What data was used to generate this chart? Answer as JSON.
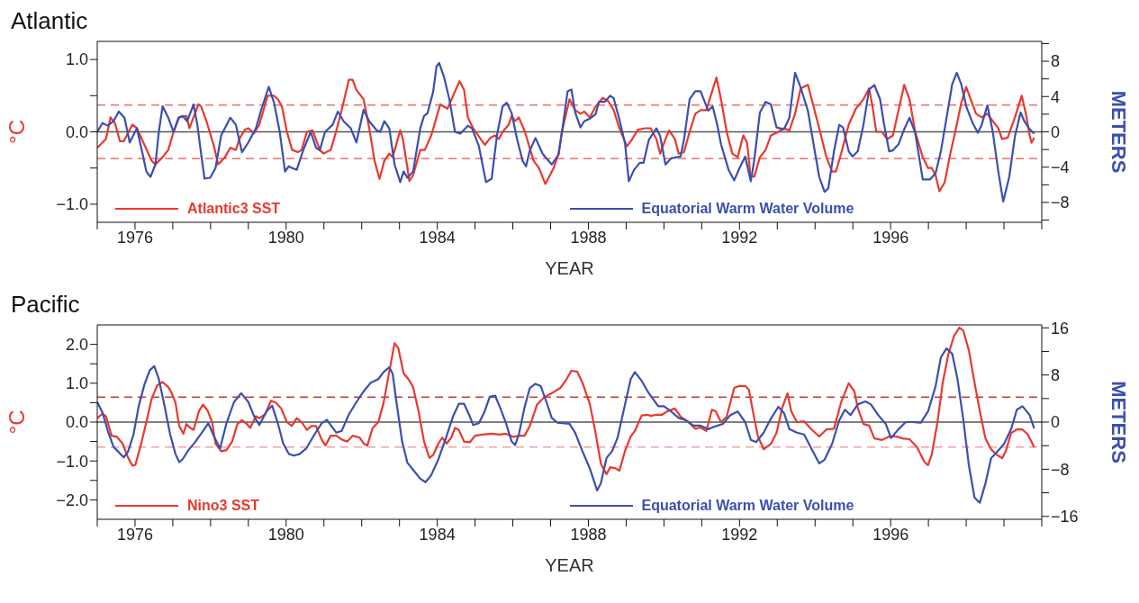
{
  "chart_data": [
    {
      "type": "line",
      "title": "Atlantic",
      "xlabel": "YEAR",
      "ylabel": "°C",
      "y2label": "METERS",
      "legend": "bottom",
      "xlim": [
        1975,
        2000
      ],
      "xticks": [
        {
          "value": 1975,
          "label": null
        },
        1976,
        {
          "value": 1977,
          "label": null
        },
        {
          "value": 1978,
          "label": null
        },
        {
          "value": 1979,
          "label": null
        },
        1980,
        {
          "value": 1981,
          "label": null
        },
        {
          "value": 1982,
          "label": null
        },
        {
          "value": 1983,
          "label": null
        },
        1984,
        {
          "value": 1985,
          "label": null
        },
        {
          "value": 1986,
          "label": null
        },
        {
          "value": 1987,
          "label": null
        },
        1988,
        {
          "value": 1989,
          "label": null
        },
        {
          "value": 1990,
          "label": null
        },
        {
          "value": 1991,
          "label": null
        },
        1992,
        {
          "value": 1993,
          "label": null
        },
        {
          "value": 1994,
          "label": null
        },
        {
          "value": 1995,
          "label": null
        },
        1996,
        {
          "value": 1997,
          "label": null
        },
        {
          "value": 1998,
          "label": null
        },
        {
          "value": 1999,
          "label": null
        },
        {
          "value": 2000,
          "label": null
        }
      ],
      "ylim": [
        -1.25,
        1.25
      ],
      "yticks": [
        {
          "value": -1,
          "label": "−1.0"
        },
        {
          "value": -0.5,
          "label": null
        },
        {
          "value": 0,
          "label": "0.0"
        },
        {
          "value": 0.5,
          "label": null
        },
        {
          "value": 1,
          "label": "1.0"
        }
      ],
      "y2lim": [
        -10.25,
        10.25
      ],
      "y2ticks": [
        {
          "value": -10,
          "label": null
        },
        {
          "value": -8,
          "label": "−8"
        },
        {
          "value": -6,
          "label": null
        },
        {
          "value": -4,
          "label": "−4"
        },
        {
          "value": -2,
          "label": null
        },
        0,
        {
          "value": 2,
          "label": null
        },
        4,
        {
          "value": 6,
          "label": null
        },
        8,
        {
          "value": 10,
          "label": null
        }
      ],
      "ref_lines": [
        {
          "axis": "y",
          "value": 0,
          "color": "#555555",
          "line_style": "solid"
        },
        {
          "axis": "y",
          "value": 0.37,
          "color": "#f07070",
          "line_style": "dashed"
        },
        {
          "axis": "y",
          "value": -0.37,
          "color": "#f07070",
          "line_style": "dashed"
        }
      ],
      "series": [
        {
          "name": "Atlantic3 SST",
          "color": "#e8382f",
          "x": [
            1975.0,
            1975.23,
            1975.35,
            1975.47,
            1975.6,
            1975.7,
            1975.93,
            1976.05,
            1976.44,
            1976.54,
            1976.73,
            1976.88,
            1977.02,
            1977.17,
            1977.36,
            1977.44,
            1977.68,
            1977.75,
            1977.89,
            1978.09,
            1978.2,
            1978.38,
            1978.52,
            1978.67,
            1978.76,
            1978.91,
            1979.0,
            1979.15,
            1979.29,
            1979.51,
            1979.68,
            1979.78,
            1979.89,
            1980.02,
            1980.16,
            1980.31,
            1980.41,
            1980.55,
            1980.7,
            1980.89,
            1980.99,
            1981.18,
            1981.32,
            1981.47,
            1981.66,
            1981.76,
            1981.86,
            1982.05,
            1982.2,
            1982.34,
            1982.47,
            1982.6,
            1982.73,
            1982.82,
            1983.02,
            1983.09,
            1983.21,
            1983.26,
            1983.36,
            1983.55,
            1983.67,
            1983.84,
            1983.98,
            1984.08,
            1984.27,
            1984.42,
            1984.59,
            1984.71,
            1984.81,
            1984.95,
            1985.15,
            1985.26,
            1985.41,
            1985.53,
            1985.63,
            1985.73,
            1985.89,
            1985.97,
            1986.06,
            1986.16,
            1986.32,
            1986.55,
            1986.69,
            1986.86,
            1987.08,
            1987.21,
            1987.3,
            1987.5,
            1987.65,
            1987.79,
            1987.89,
            1988.04,
            1988.19,
            1988.38,
            1988.53,
            1988.67,
            1988.82,
            1989.02,
            1989.16,
            1989.31,
            1989.51,
            1989.65,
            1989.8,
            1989.9,
            1990.04,
            1990.14,
            1990.29,
            1990.39,
            1990.53,
            1990.68,
            1990.83,
            1990.97,
            1991.12,
            1991.27,
            1991.39,
            1991.51,
            1991.66,
            1991.81,
            1991.95,
            1992.1,
            1992.2,
            1992.29,
            1992.39,
            1992.54,
            1992.69,
            1992.83,
            1993.03,
            1993.18,
            1993.32,
            1993.47,
            1993.62,
            1993.81,
            1993.96,
            1994.11,
            1994.3,
            1994.45,
            1994.55,
            1994.69,
            1994.89,
            1995.08,
            1995.28,
            1995.43,
            1995.52,
            1995.62,
            1995.77,
            1995.91,
            1996.06,
            1996.21,
            1996.36,
            1996.5,
            1996.65,
            1996.85,
            1996.99,
            1997.09,
            1997.19,
            1997.29,
            1997.43,
            1997.58,
            1997.73,
            1997.87,
            1998.0,
            1998.12,
            1998.26,
            1998.41,
            1998.56,
            1998.7,
            1998.85,
            1998.95,
            1999.1,
            1999.29,
            1999.47,
            1999.58,
            1999.68,
            1999.73,
            1999.8
          ],
          "values": [
            -0.22,
            -0.1,
            0.2,
            0.12,
            -0.13,
            -0.13,
            0.1,
            0.05,
            -0.4,
            -0.45,
            -0.35,
            -0.25,
            0.0,
            0.2,
            0.22,
            0.05,
            0.38,
            0.35,
            0.15,
            -0.2,
            -0.45,
            -0.35,
            -0.22,
            -0.25,
            -0.1,
            0.03,
            0.05,
            -0.02,
            0.1,
            0.5,
            0.5,
            0.45,
            0.35,
            0.0,
            -0.25,
            -0.28,
            -0.25,
            0.0,
            0.02,
            -0.25,
            -0.3,
            -0.25,
            0.0,
            0.3,
            0.72,
            0.72,
            0.58,
            0.45,
            0.05,
            -0.4,
            -0.65,
            -0.4,
            -0.3,
            -0.35,
            0.02,
            -0.1,
            -0.5,
            -0.68,
            -0.6,
            -0.25,
            -0.25,
            -0.05,
            0.2,
            0.38,
            0.32,
            0.5,
            0.7,
            0.58,
            0.2,
            0.05,
            -0.1,
            -0.18,
            -0.08,
            -0.05,
            -0.1,
            0.0,
            0.1,
            0.22,
            0.15,
            0.2,
            0.0,
            -0.4,
            -0.5,
            -0.72,
            -0.5,
            -0.3,
            0.0,
            0.45,
            0.3,
            0.25,
            0.28,
            0.2,
            0.35,
            0.47,
            0.42,
            0.3,
            0.05,
            -0.2,
            -0.1,
            0.03,
            0.05,
            0.05,
            -0.1,
            -0.3,
            -0.1,
            0.02,
            -0.1,
            -0.3,
            -0.28,
            0.0,
            0.25,
            0.3,
            0.3,
            0.55,
            0.75,
            0.45,
            0.0,
            -0.3,
            -0.35,
            -0.05,
            -0.15,
            -0.6,
            -0.62,
            -0.35,
            -0.25,
            -0.05,
            0.0,
            0.05,
            0.02,
            0.25,
            0.6,
            0.65,
            0.35,
            0.05,
            -0.35,
            -0.55,
            -0.55,
            -0.3,
            0.1,
            0.32,
            0.45,
            0.6,
            0.35,
            0.0,
            0.0,
            -0.1,
            -0.05,
            0.3,
            0.65,
            0.45,
            0.0,
            -0.35,
            -0.5,
            -0.5,
            -0.6,
            -0.82,
            -0.7,
            -0.3,
            0.05,
            0.4,
            0.62,
            0.45,
            0.25,
            0.2,
            0.25,
            0.15,
            0.05,
            -0.1,
            -0.08,
            0.2,
            0.5,
            0.25,
            -0.05,
            -0.15,
            -0.08
          ]
        },
        {
          "name": "Equatorial Warm Water Volume",
          "color": "#3a4fb0",
          "axis": "y2",
          "x": [
            1975.0,
            1975.14,
            1975.28,
            1975.43,
            1975.57,
            1975.72,
            1975.86,
            1976.05,
            1976.2,
            1976.3,
            1976.41,
            1976.54,
            1976.63,
            1976.73,
            1976.88,
            1977.02,
            1977.15,
            1977.26,
            1977.38,
            1977.55,
            1977.65,
            1977.75,
            1977.84,
            1977.99,
            1978.13,
            1978.28,
            1978.52,
            1978.67,
            1978.83,
            1979.0,
            1979.2,
            1979.34,
            1979.54,
            1979.68,
            1979.83,
            1979.97,
            1980.07,
            1980.16,
            1980.28,
            1980.45,
            1980.65,
            1980.79,
            1980.89,
            1981.03,
            1981.23,
            1981.37,
            1981.52,
            1981.71,
            1981.86,
            1982.05,
            1982.2,
            1982.39,
            1982.49,
            1982.6,
            1982.73,
            1982.87,
            1983.02,
            1983.11,
            1983.21,
            1983.36,
            1983.55,
            1983.65,
            1983.74,
            1983.89,
            1983.98,
            1984.05,
            1984.18,
            1984.32,
            1984.47,
            1984.61,
            1984.81,
            1984.92,
            1985.1,
            1985.29,
            1985.44,
            1985.58,
            1985.73,
            1985.84,
            1985.97,
            1986.11,
            1986.26,
            1986.35,
            1986.45,
            1986.6,
            1986.79,
            1987.03,
            1987.21,
            1987.31,
            1987.45,
            1987.55,
            1987.65,
            1987.79,
            1987.89,
            1988.04,
            1988.19,
            1988.28,
            1988.43,
            1988.58,
            1988.67,
            1988.82,
            1988.97,
            1989.07,
            1989.21,
            1989.36,
            1989.46,
            1989.6,
            1989.8,
            1989.9,
            1990.04,
            1990.19,
            1990.44,
            1990.53,
            1990.68,
            1990.83,
            1990.97,
            1991.07,
            1991.17,
            1991.29,
            1991.41,
            1991.51,
            1991.71,
            1991.86,
            1992.0,
            1992.15,
            1992.3,
            1992.39,
            1992.54,
            1992.69,
            1992.83,
            1992.98,
            1993.18,
            1993.32,
            1993.47,
            1993.62,
            1993.81,
            1993.96,
            1994.11,
            1994.25,
            1994.35,
            1994.5,
            1994.64,
            1994.74,
            1994.89,
            1994.99,
            1995.13,
            1995.28,
            1995.43,
            1995.57,
            1995.72,
            1995.82,
            1995.96,
            1996.06,
            1996.21,
            1996.36,
            1996.5,
            1996.65,
            1996.85,
            1997.04,
            1997.19,
            1997.33,
            1997.48,
            1997.63,
            1997.75,
            1997.87,
            1998.0,
            1998.17,
            1998.31,
            1998.41,
            1998.56,
            1998.7,
            1998.85,
            1998.98,
            1999.14,
            1999.29,
            1999.44,
            1999.54,
            1999.68,
            1999.8
          ],
          "values": [
            0,
            1.0,
            0.7,
            1.2,
            2.3,
            1.6,
            -1.2,
            0.4,
            -2.5,
            -4.5,
            -5.1,
            -3.7,
            0,
            2.9,
            1.6,
            0,
            1.6,
            1.8,
            1.2,
            3.1,
            0.8,
            -2.5,
            -5.3,
            -5.2,
            -4.1,
            -0.4,
            1.6,
            0.8,
            -2.3,
            -1.2,
            0.4,
            2.5,
            5.1,
            3.3,
            0,
            -4.5,
            -3.9,
            -4.1,
            -4.3,
            -2.1,
            0,
            -1.8,
            -2.1,
            0,
            0.8,
            2.3,
            1.2,
            0.4,
            -1.2,
            2.5,
            1.2,
            0.2,
            0,
            1.2,
            0.4,
            -3.7,
            -5.7,
            -4.5,
            -5.2,
            -4.5,
            0.4,
            1.8,
            2.1,
            4.5,
            7.4,
            7.8,
            6.2,
            3.7,
            0,
            -0.2,
            0.7,
            0.4,
            -1.6,
            -5.7,
            -5.3,
            -0.4,
            2.9,
            3.3,
            2.1,
            -0.8,
            -3.3,
            -3.9,
            -2.1,
            -0.7,
            -2.5,
            -3.7,
            -2.6,
            0.3,
            4.6,
            4.8,
            2.2,
            0.5,
            1.2,
            1.5,
            2.0,
            3.4,
            3.4,
            4.1,
            3.8,
            1.4,
            -1.3,
            -5.6,
            -4.3,
            -3.5,
            -3.5,
            -0.9,
            0.4,
            -0.5,
            -3.7,
            -3.0,
            -2.8,
            -0.9,
            3.7,
            4.6,
            4.6,
            3.5,
            2.4,
            2.9,
            0.8,
            -1.4,
            -4.3,
            -5.5,
            -4.1,
            -2.8,
            -5.6,
            -3.2,
            2.2,
            3.4,
            3.1,
            0.5,
            0.3,
            1.6,
            6.7,
            5.0,
            2.4,
            -1.4,
            -5.1,
            -6.8,
            -6.4,
            -2.2,
            0.8,
            0.5,
            -2.2,
            -2.8,
            -2.2,
            0.8,
            4.8,
            5.3,
            3.7,
            1.0,
            -2.2,
            -2.1,
            -1.4,
            0.3,
            1.6,
            -0.1,
            -5.4,
            -5.4,
            -4.7,
            -2.2,
            1.6,
            5.4,
            6.7,
            5.4,
            2.9,
            1.0,
            -0.1,
            0.8,
            3.0,
            0.1,
            -4.5,
            -7.9,
            -5.1,
            -0.5,
            2.2,
            1.2,
            0.3,
            -0.2
          ]
        }
      ]
    },
    {
      "type": "line",
      "title": "Pacific",
      "xlabel": "YEAR",
      "ylabel": "°C",
      "y2label": "METERS",
      "legend": "bottom",
      "xlim": [
        1975,
        2000
      ],
      "xticks": [
        {
          "value": 1975,
          "label": null
        },
        1976,
        {
          "value": 1977,
          "label": null
        },
        {
          "value": 1978,
          "label": null
        },
        {
          "value": 1979,
          "label": null
        },
        1980,
        {
          "value": 1981,
          "label": null
        },
        {
          "value": 1982,
          "label": null
        },
        {
          "value": 1983,
          "label": null
        },
        1984,
        {
          "value": 1985,
          "label": null
        },
        {
          "value": 1986,
          "label": null
        },
        {
          "value": 1987,
          "label": null
        },
        1988,
        {
          "value": 1989,
          "label": null
        },
        {
          "value": 1990,
          "label": null
        },
        {
          "value": 1991,
          "label": null
        },
        1992,
        {
          "value": 1993,
          "label": null
        },
        {
          "value": 1994,
          "label": null
        },
        {
          "value": 1995,
          "label": null
        },
        1996,
        {
          "value": 1997,
          "label": null
        },
        {
          "value": 1998,
          "label": null
        },
        {
          "value": 1999,
          "label": null
        },
        {
          "value": 2000,
          "label": null
        }
      ],
      "ylim": [
        -2.5,
        2.5
      ],
      "yticks": [
        {
          "value": -2,
          "label": "−2.0"
        },
        {
          "value": -1.5,
          "label": null
        },
        {
          "value": -1,
          "label": "−1.0"
        },
        {
          "value": -0.5,
          "label": null
        },
        {
          "value": 0,
          "label": "0.0"
        },
        {
          "value": 0.5,
          "label": null
        },
        {
          "value": 1,
          "label": "1.0"
        },
        {
          "value": 1.5,
          "label": null
        },
        {
          "value": 2,
          "label": "2.0"
        }
      ],
      "y2lim": [
        -16.5,
        16.5
      ],
      "y2ticks": [
        {
          "value": -16,
          "label": "−16"
        },
        {
          "value": -12,
          "label": null
        },
        {
          "value": -8,
          "label": "−8"
        },
        {
          "value": -4,
          "label": null
        },
        0,
        {
          "value": 4,
          "label": null
        },
        8,
        {
          "value": 12,
          "label": null
        },
        16
      ],
      "ref_lines": [
        {
          "axis": "y",
          "value": 0,
          "color": "#555555",
          "line_style": "solid"
        },
        {
          "axis": "y",
          "value": 0.64,
          "color": "#c83a3a",
          "line_style": "dashed"
        },
        {
          "axis": "y",
          "value": -0.64,
          "color": "#f5a0a0",
          "line_style": "dashed"
        }
      ],
      "series": [
        {
          "name": "Nino3 SST",
          "color": "#e8382f",
          "x": [
            1975.0,
            1975.14,
            1975.23,
            1975.38,
            1975.52,
            1975.67,
            1975.81,
            1975.93,
            1976.01,
            1976.15,
            1976.3,
            1976.44,
            1976.59,
            1976.73,
            1976.88,
            1976.97,
            1977.07,
            1977.17,
            1977.28,
            1977.36,
            1977.46,
            1977.55,
            1977.7,
            1977.8,
            1977.92,
            1978.04,
            1978.13,
            1978.28,
            1978.42,
            1978.57,
            1978.71,
            1978.83,
            1978.96,
            1979.05,
            1979.2,
            1979.29,
            1979.44,
            1979.6,
            1979.73,
            1979.87,
            1980.02,
            1980.15,
            1980.28,
            1980.41,
            1980.55,
            1980.67,
            1980.79,
            1980.94,
            1981.04,
            1981.18,
            1981.33,
            1981.47,
            1981.62,
            1981.76,
            1981.95,
            1982.05,
            1982.15,
            1982.29,
            1982.44,
            1982.58,
            1982.73,
            1982.87,
            1982.97,
            1983.11,
            1983.24,
            1983.36,
            1983.5,
            1983.65,
            1983.79,
            1983.89,
            1984.03,
            1984.13,
            1984.25,
            1984.37,
            1984.47,
            1984.57,
            1984.71,
            1984.86,
            1985.0,
            1985.19,
            1985.44,
            1985.63,
            1985.82,
            1986.02,
            1986.16,
            1986.31,
            1986.45,
            1986.64,
            1986.84,
            1987.06,
            1987.26,
            1987.4,
            1987.55,
            1987.7,
            1987.84,
            1988.04,
            1988.19,
            1988.33,
            1988.48,
            1988.58,
            1988.72,
            1988.82,
            1988.97,
            1989.12,
            1989.23,
            1989.41,
            1989.56,
            1989.65,
            1989.8,
            1989.95,
            1990.09,
            1990.29,
            1990.44,
            1990.63,
            1990.83,
            1990.97,
            1991.12,
            1991.27,
            1991.37,
            1991.51,
            1991.66,
            1991.86,
            1992.0,
            1992.15,
            1992.25,
            1992.39,
            1992.49,
            1992.64,
            1992.83,
            1992.98,
            1993.13,
            1993.27,
            1993.37,
            1993.52,
            1993.71,
            1993.91,
            1994.11,
            1994.3,
            1994.5,
            1994.69,
            1994.89,
            1995.04,
            1995.13,
            1995.28,
            1995.43,
            1995.57,
            1995.77,
            1995.96,
            1996.16,
            1996.31,
            1996.5,
            1996.7,
            1996.89,
            1996.99,
            1997.09,
            1997.24,
            1997.38,
            1997.53,
            1997.68,
            1997.82,
            1997.92,
            1998.07,
            1998.22,
            1998.36,
            1998.51,
            1998.66,
            1998.8,
            1998.95,
            1999.05,
            1999.19,
            1999.34,
            1999.49,
            1999.63,
            1999.8
          ],
          "values": [
            0.1,
            0.22,
            0.15,
            -0.35,
            -0.38,
            -0.55,
            -0.9,
            -1.12,
            -1.1,
            -0.6,
            0.0,
            0.6,
            0.95,
            1.03,
            0.9,
            0.75,
            0.5,
            -0.1,
            -0.3,
            -0.05,
            -0.15,
            -0.2,
            0.3,
            0.45,
            0.3,
            0.0,
            -0.55,
            -0.75,
            -0.72,
            -0.5,
            -0.05,
            0.05,
            -0.05,
            -0.15,
            0.15,
            0.1,
            0.2,
            0.55,
            0.5,
            0.35,
            0.0,
            -0.1,
            0.1,
            0.0,
            -0.2,
            -0.1,
            -0.1,
            -0.45,
            -0.6,
            -0.35,
            -0.35,
            -0.45,
            -0.5,
            -0.35,
            -0.4,
            -0.55,
            -0.6,
            -0.15,
            0.0,
            0.5,
            1.3,
            2.03,
            1.9,
            1.25,
            1.1,
            0.9,
            0.3,
            -0.5,
            -0.92,
            -0.85,
            -0.55,
            -0.4,
            -0.55,
            -0.4,
            -0.15,
            -0.2,
            -0.5,
            -0.52,
            -0.35,
            -0.32,
            -0.3,
            -0.32,
            -0.3,
            -0.38,
            -0.35,
            -0.35,
            -0.1,
            0.45,
            0.65,
            0.76,
            0.88,
            1.07,
            1.32,
            1.3,
            1.02,
            0.46,
            -0.28,
            -1.07,
            -1.34,
            -1.16,
            -1.19,
            -1.25,
            -0.74,
            -0.37,
            -0.23,
            0.17,
            0.19,
            0.16,
            0.19,
            0.19,
            0.28,
            0.35,
            0.14,
            0.02,
            -0.17,
            -0.14,
            -0.23,
            0.32,
            0.28,
            0.0,
            0.14,
            0.88,
            0.93,
            0.93,
            0.83,
            0.09,
            -0.37,
            -0.7,
            -0.56,
            -0.28,
            0.37,
            0.74,
            0.28,
            0.0,
            0.02,
            -0.19,
            -0.37,
            -0.19,
            -0.17,
            0.51,
            1.0,
            0.79,
            0.37,
            -0.05,
            -0.09,
            -0.42,
            -0.46,
            -0.37,
            -0.37,
            -0.42,
            -0.44,
            -0.65,
            -1.02,
            -1.11,
            -0.83,
            0.0,
            1.02,
            1.76,
            2.22,
            2.43,
            2.36,
            1.85,
            1.02,
            0.28,
            -0.42,
            -0.7,
            -0.83,
            -0.93,
            -0.74,
            -0.28,
            -0.19,
            -0.19,
            -0.32,
            -0.65
          ]
        },
        {
          "name": "Equatorial Warm Water Volume",
          "color": "#3a4fb0",
          "axis": "y2",
          "x": [
            1975.0,
            1975.14,
            1975.28,
            1975.43,
            1975.57,
            1975.7,
            1975.81,
            1975.96,
            1976.1,
            1976.25,
            1976.39,
            1976.51,
            1976.63,
            1976.78,
            1976.93,
            1977.07,
            1977.17,
            1977.26,
            1977.41,
            1977.6,
            1977.8,
            1977.94,
            1978.09,
            1978.25,
            1978.42,
            1978.62,
            1978.81,
            1979.0,
            1979.15,
            1979.29,
            1979.49,
            1979.63,
            1979.78,
            1979.92,
            1980.07,
            1980.21,
            1980.36,
            1980.53,
            1980.75,
            1980.94,
            1981.08,
            1981.18,
            1981.33,
            1981.47,
            1981.66,
            1981.86,
            1982.05,
            1982.24,
            1982.44,
            1982.58,
            1982.73,
            1982.82,
            1982.92,
            1983.07,
            1983.21,
            1983.36,
            1983.55,
            1983.69,
            1983.84,
            1984.03,
            1984.23,
            1984.42,
            1984.57,
            1984.71,
            1984.86,
            1984.95,
            1985.1,
            1985.24,
            1985.39,
            1985.53,
            1985.68,
            1985.82,
            1985.97,
            1986.06,
            1986.16,
            1986.31,
            1986.45,
            1986.6,
            1986.74,
            1986.89,
            1987.03,
            1987.18,
            1987.5,
            1987.65,
            1987.84,
            1988.04,
            1988.23,
            1988.33,
            1988.48,
            1988.63,
            1988.77,
            1988.97,
            1989.12,
            1989.23,
            1989.41,
            1989.6,
            1989.85,
            1990.0,
            1990.19,
            1990.39,
            1990.58,
            1990.78,
            1990.97,
            1991.17,
            1991.37,
            1991.56,
            1991.76,
            1991.95,
            1992.15,
            1992.3,
            1992.44,
            1992.64,
            1992.83,
            1993.03,
            1993.18,
            1993.32,
            1993.52,
            1993.71,
            1993.91,
            1994.11,
            1994.25,
            1994.45,
            1994.64,
            1994.79,
            1994.94,
            1995.13,
            1995.33,
            1995.48,
            1995.67,
            1995.87,
            1996.01,
            1996.21,
            1996.4,
            1996.6,
            1996.8,
            1996.99,
            1997.19,
            1997.33,
            1997.48,
            1997.63,
            1997.77,
            1997.92,
            1998.07,
            1998.22,
            1998.36,
            1998.51,
            1998.66,
            1998.8,
            1999.0,
            1999.19,
            1999.34,
            1999.49,
            1999.68,
            1999.8
          ],
          "values": [
            3.4,
            1.6,
            -1.5,
            -4.2,
            -5.1,
            -6.0,
            -5.1,
            -2.1,
            2.8,
            6.4,
            8.8,
            9.5,
            7.3,
            2.8,
            -2.1,
            -5.4,
            -6.8,
            -6.3,
            -4.8,
            -3.3,
            -1.5,
            -0.2,
            -2.4,
            -4.5,
            -0.2,
            3.4,
            4.9,
            3.4,
            1.0,
            -0.5,
            1.9,
            2.8,
            -0.2,
            -3.6,
            -5.4,
            -5.7,
            -5.4,
            -4.5,
            -2.1,
            -0.2,
            0.4,
            -0.5,
            -1.8,
            -1.5,
            1.3,
            3.4,
            5.2,
            6.7,
            7.3,
            8.5,
            9.3,
            8.2,
            3.4,
            -3.3,
            -6.9,
            -8.1,
            -9.6,
            -10.2,
            -9.0,
            -6.3,
            -2.7,
            1.0,
            3.1,
            3.1,
            1.0,
            -0.5,
            -0.2,
            1.6,
            4.3,
            4.5,
            2.2,
            -0.2,
            -3.3,
            -3.9,
            -2.1,
            2.5,
            5.8,
            6.5,
            6.1,
            3.4,
            0.7,
            -0.1,
            -0.3,
            -1.8,
            -4.9,
            -7.9,
            -11.6,
            -10.4,
            -6.1,
            -4.9,
            -2.7,
            3.0,
            7.3,
            8.5,
            7.0,
            4.9,
            2.7,
            2.7,
            1.8,
            0.7,
            0.3,
            -0.6,
            -0.6,
            -1.2,
            -0.7,
            -0.3,
            1.2,
            1.8,
            0.0,
            -3.0,
            -3.4,
            -1.8,
            0.6,
            2.6,
            1.5,
            -1.2,
            -1.8,
            -2.1,
            -4.6,
            -7.0,
            -6.4,
            -3.7,
            0.3,
            2.1,
            1.2,
            3.0,
            3.5,
            3.0,
            1.2,
            -0.3,
            -2.7,
            -1.2,
            0.0,
            0.0,
            -0.1,
            1.8,
            6.1,
            11.0,
            12.5,
            11.6,
            7.3,
            0.6,
            -7.3,
            -12.8,
            -13.7,
            -10.4,
            -6.1,
            -5.2,
            -3.7,
            -1.2,
            2.1,
            2.7,
            1.2,
            -1.1
          ]
        }
      ]
    }
  ]
}
